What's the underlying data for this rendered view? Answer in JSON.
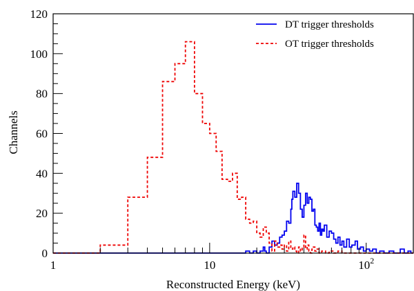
{
  "chart_data": {
    "type": "line",
    "xlabel": "Reconstructed  Energy (keV)",
    "ylabel": "Channels",
    "xscale": "log",
    "xlim": [
      1,
      200
    ],
    "ylim": [
      0,
      120
    ],
    "x_ticks": [
      {
        "value": 1,
        "label": "1"
      },
      {
        "value": 10,
        "label": "10"
      },
      {
        "value": 100,
        "label": "10",
        "sup": "2"
      }
    ],
    "y_ticks": [
      0,
      20,
      40,
      60,
      80,
      100,
      120
    ],
    "legend_position": "top-right",
    "series": [
      {
        "name": "DT trigger thresholds",
        "color": "#0000ee",
        "dash": "solid",
        "points": [
          [
            1,
            0
          ],
          [
            11,
            0
          ],
          [
            16,
            0
          ],
          [
            17,
            1
          ],
          [
            18,
            0
          ],
          [
            19,
            1
          ],
          [
            20,
            0
          ],
          [
            21,
            1
          ],
          [
            22,
            3
          ],
          [
            22.5,
            1
          ],
          [
            23,
            0
          ],
          [
            24,
            3
          ],
          [
            25,
            6
          ],
          [
            26,
            4
          ],
          [
            27,
            5
          ],
          [
            28,
            8
          ],
          [
            29,
            9
          ],
          [
            30,
            11
          ],
          [
            31,
            16
          ],
          [
            32,
            15
          ],
          [
            33,
            22
          ],
          [
            33.5,
            27
          ],
          [
            34,
            31
          ],
          [
            35,
            28
          ],
          [
            36,
            35
          ],
          [
            37,
            30
          ],
          [
            38,
            22
          ],
          [
            39,
            18
          ],
          [
            40,
            24
          ],
          [
            41,
            30
          ],
          [
            42,
            25
          ],
          [
            43,
            28
          ],
          [
            44,
            27
          ],
          [
            45,
            21
          ],
          [
            46,
            22
          ],
          [
            47,
            14
          ],
          [
            48,
            13
          ],
          [
            49,
            11
          ],
          [
            50,
            15
          ],
          [
            51,
            9
          ],
          [
            52,
            12
          ],
          [
            53,
            11
          ],
          [
            54,
            14
          ],
          [
            56,
            8
          ],
          [
            58,
            11
          ],
          [
            60,
            10
          ],
          [
            62,
            7
          ],
          [
            64,
            5
          ],
          [
            66,
            8
          ],
          [
            68,
            4
          ],
          [
            70,
            6
          ],
          [
            72,
            3
          ],
          [
            75,
            7
          ],
          [
            78,
            3
          ],
          [
            81,
            4
          ],
          [
            85,
            6
          ],
          [
            88,
            2
          ],
          [
            92,
            3
          ],
          [
            96,
            1
          ],
          [
            100,
            2
          ],
          [
            105,
            1
          ],
          [
            110,
            2
          ],
          [
            116,
            0
          ],
          [
            122,
            1
          ],
          [
            130,
            0
          ],
          [
            140,
            1
          ],
          [
            150,
            0
          ],
          [
            165,
            2
          ],
          [
            175,
            0
          ],
          [
            185,
            1
          ],
          [
            193,
            0
          ],
          [
            200,
            0
          ]
        ]
      },
      {
        "name": "OT trigger thresholds",
        "color": "#ee0000",
        "dash": "dashed",
        "points": [
          [
            1,
            0
          ],
          [
            2,
            4
          ],
          [
            3,
            28
          ],
          [
            4,
            48
          ],
          [
            5,
            86
          ],
          [
            6,
            95
          ],
          [
            7,
            106
          ],
          [
            8,
            80
          ],
          [
            9,
            65
          ],
          [
            10,
            60
          ],
          [
            11,
            51
          ],
          [
            12,
            37
          ],
          [
            13,
            36
          ],
          [
            14,
            40
          ],
          [
            15,
            27
          ],
          [
            16,
            28
          ],
          [
            17,
            17
          ],
          [
            18,
            15
          ],
          [
            19,
            16
          ],
          [
            20,
            10
          ],
          [
            21,
            8
          ],
          [
            22,
            13
          ],
          [
            23,
            10
          ],
          [
            24,
            5
          ],
          [
            25,
            1
          ],
          [
            26,
            6
          ],
          [
            27,
            3
          ],
          [
            28,
            4
          ],
          [
            29,
            2
          ],
          [
            30,
            4
          ],
          [
            31,
            1
          ],
          [
            32,
            6
          ],
          [
            33,
            2
          ],
          [
            34,
            3
          ],
          [
            35,
            1
          ],
          [
            36,
            0
          ],
          [
            37,
            3
          ],
          [
            38,
            1
          ],
          [
            39,
            3
          ],
          [
            40,
            9
          ],
          [
            41,
            2
          ],
          [
            42,
            4
          ],
          [
            43,
            1
          ],
          [
            44,
            0
          ],
          [
            45,
            2
          ],
          [
            46,
            3
          ],
          [
            47,
            1
          ],
          [
            48,
            2
          ],
          [
            50,
            0
          ],
          [
            52,
            1
          ],
          [
            55,
            0
          ],
          [
            58,
            1
          ],
          [
            62,
            0
          ],
          [
            66,
            1
          ],
          [
            70,
            0
          ],
          [
            80,
            0
          ],
          [
            200,
            0
          ]
        ]
      }
    ]
  }
}
